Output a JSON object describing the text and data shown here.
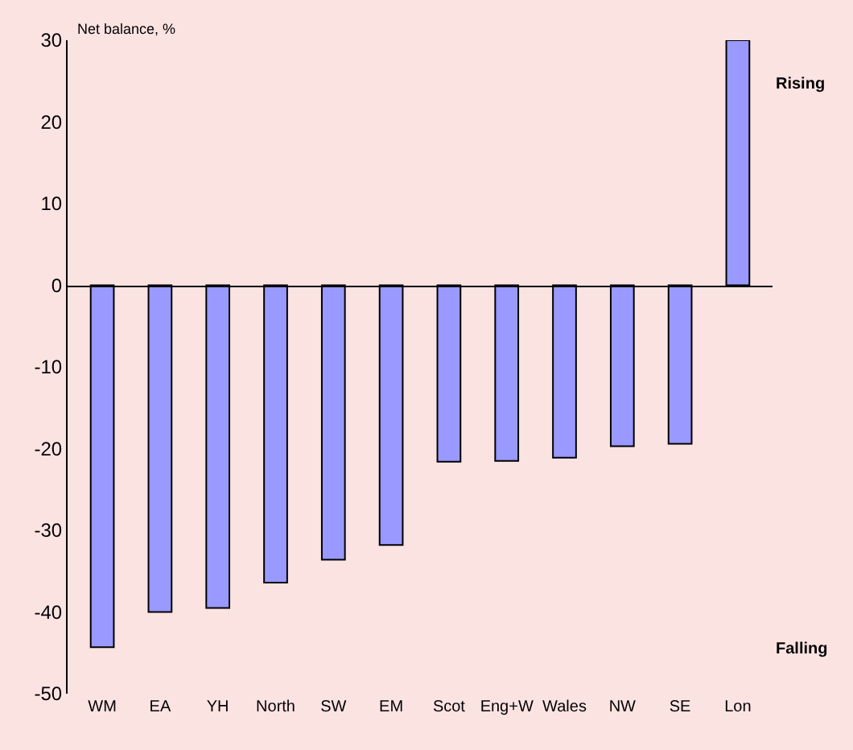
{
  "chart_data": {
    "type": "bar",
    "ylabel": "Net balance, %",
    "categories": [
      "WM",
      "EA",
      "YH",
      "North",
      "SW",
      "EM",
      "Scot",
      "Eng+W",
      "Wales",
      "NW",
      "SE",
      "Lon"
    ],
    "values": [
      -44.3,
      -40,
      -39.5,
      -36.4,
      -33.6,
      -31.8,
      -21.6,
      -21.5,
      -21.1,
      -19.7,
      -19.4,
      30
    ],
    "color": "#9999ff",
    "ylim": [
      -50,
      30
    ],
    "yticks": [
      -50,
      -40,
      -30,
      -20,
      -10,
      0,
      10,
      20,
      30
    ],
    "legend": false,
    "annotations": [
      "Rising",
      "Falling"
    ]
  }
}
